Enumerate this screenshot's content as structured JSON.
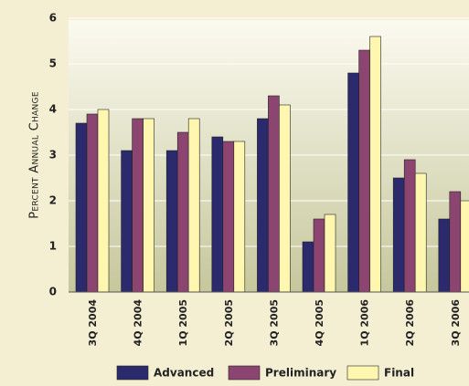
{
  "chart_data": {
    "type": "bar",
    "y_label": "Percent Annual Change",
    "categories": [
      "3Q 2004",
      "4Q 2004",
      "1Q 2005",
      "2Q 2005",
      "3Q 2005",
      "4Q 2005",
      "1Q 2006",
      "2Q 2006",
      "3Q 2006"
    ],
    "series": [
      {
        "name": "Advanced",
        "color": "#2a2a6c",
        "values": [
          3.7,
          3.1,
          3.1,
          3.4,
          3.8,
          1.1,
          4.8,
          2.5,
          1.6
        ]
      },
      {
        "name": "Preliminary",
        "color": "#8c4470",
        "values": [
          3.9,
          3.8,
          3.5,
          3.3,
          4.3,
          1.6,
          5.3,
          2.9,
          2.2
        ]
      },
      {
        "name": "Final",
        "color": "#fff7b0",
        "values": [
          4.0,
          3.8,
          3.8,
          3.3,
          4.1,
          1.7,
          5.6,
          2.6,
          2.0
        ]
      }
    ],
    "ylim": [
      0,
      6
    ],
    "yticks": [
      0,
      1,
      2,
      3,
      4,
      5,
      6
    ],
    "grid": true,
    "legend": "bottom"
  }
}
